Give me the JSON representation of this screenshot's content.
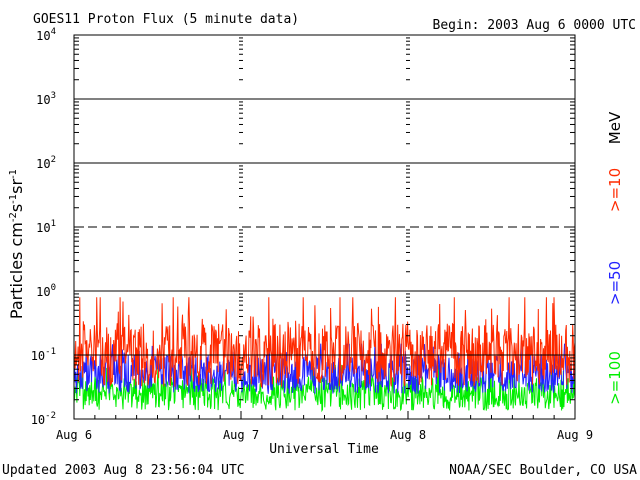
{
  "header": {
    "title": "GOES11 Proton Flux (5 minute data)",
    "begin": "Begin: 2003 Aug 6 0000 UTC"
  },
  "footer": {
    "updated": "Updated 2003 Aug  8 23:56:04 UTC",
    "credit": "NOAA/SEC Boulder, CO USA"
  },
  "colors": {
    "ge10": "#ff2a00",
    "ge50": "#2222ff",
    "ge100": "#00ee00",
    "frame": "#000000"
  },
  "chart_data": {
    "type": "line",
    "title": "GOES11 Proton Flux (5 minute data)",
    "xlabel": "Universal Time",
    "ylabel": "Particles cm-2 s-1 sr-1",
    "y_scale": "log",
    "ylim": [
      0.01,
      10000
    ],
    "xlim": [
      "2003-08-06",
      "2003-08-09"
    ],
    "x_ticks": [
      "Aug 6",
      "Aug 7",
      "Aug 8",
      "Aug 9"
    ],
    "y_ticks": [
      {
        "value": 0.01,
        "base": "10",
        "exp": "-2"
      },
      {
        "value": 0.1,
        "base": "10",
        "exp": "-1"
      },
      {
        "value": 1,
        "base": "10",
        "exp": "0"
      },
      {
        "value": 10,
        "base": "10",
        "exp": "1"
      },
      {
        "value": 100,
        "base": "10",
        "exp": "2"
      },
      {
        "value": 1000,
        "base": "10",
        "exp": "3"
      },
      {
        "value": 10000,
        "base": "10",
        "exp": "4"
      }
    ],
    "reference_lines": [
      {
        "value": 10,
        "style": "dashed"
      },
      {
        "value": 0.1,
        "style": "solid"
      }
    ],
    "legend_unit": "MeV",
    "legend_placement": "right",
    "series": [
      {
        "name": ">=10",
        "color_key": "ge10",
        "typical": 0.1,
        "range": [
          0.03,
          0.8
        ]
      },
      {
        "name": ">=50",
        "color_key": "ge50",
        "typical": 0.05,
        "range": [
          0.02,
          0.15
        ]
      },
      {
        "name": ">=100",
        "color_key": "ge100",
        "typical": 0.025,
        "range": [
          0.012,
          0.07
        ]
      }
    ]
  }
}
